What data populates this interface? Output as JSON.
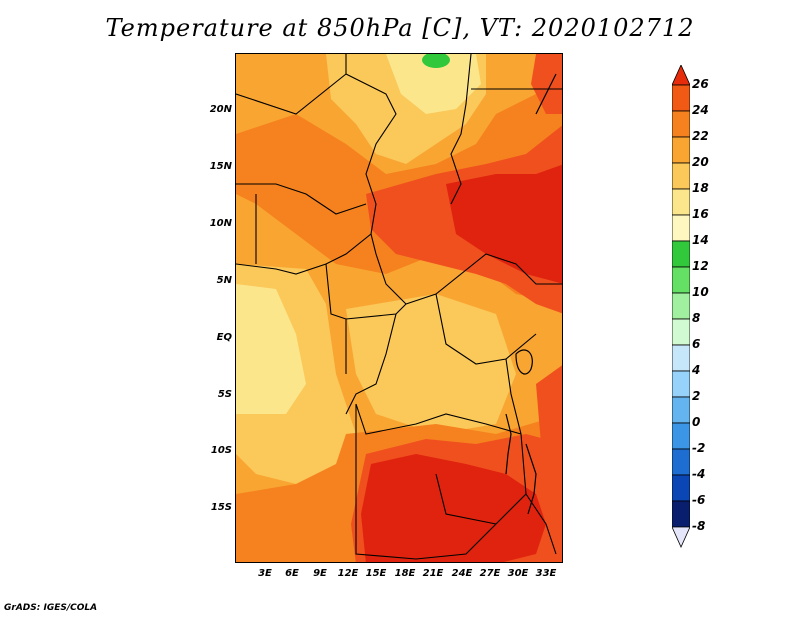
{
  "title": "Temperature at 850hPa [C], VT: 2020102712",
  "credit": "GrADS: IGES/COLA",
  "lat_labels": [
    "20N",
    "15N",
    "10N",
    "5N",
    "EQ",
    "5S",
    "10S",
    "15S"
  ],
  "lon_labels": [
    "3E",
    "6E",
    "9E",
    "12E",
    "15E",
    "18E",
    "21E",
    "24E",
    "27E",
    "30E",
    "33E"
  ],
  "colorbar": {
    "labels": [
      "26",
      "24",
      "22",
      "20",
      "18",
      "16",
      "14",
      "12",
      "10",
      "8",
      "6",
      "4",
      "2",
      "0",
      "-2",
      "-4",
      "-6",
      "-8"
    ],
    "colors": [
      "#e62c0a",
      "#f05a14",
      "#f5821e",
      "#f9a532",
      "#fbc85a",
      "#fce68c",
      "#fff7c0",
      "#32c83c",
      "#64e164",
      "#a0f0a0",
      "#d2fad2",
      "#c6e6fa",
      "#96d2fa",
      "#64b4f0",
      "#3c96e6",
      "#1e6ed2",
      "#0a46b4",
      "#0a1e6e",
      "#000050"
    ]
  },
  "legend_colors": {
    "t24_plus": "#e0230f",
    "t22_24": "#f0501e",
    "t20_22": "#f5821e",
    "t18_20": "#f9a532",
    "t16_18": "#fbc85a",
    "t14_16": "#fce68c",
    "green_patch": "#32c83c"
  }
}
